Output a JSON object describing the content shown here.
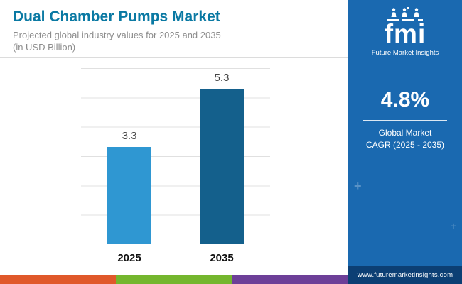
{
  "header": {
    "title": "Dual Chamber Pumps Market",
    "subtitle": "Projected global industry values for 2025 and 2035",
    "subtitle2": "(in USD Billion)"
  },
  "chart_data": {
    "type": "bar",
    "title": "Dual Chamber Pumps Market — Projected global industry values (USD Billion)",
    "categories": [
      "2025",
      "2035"
    ],
    "values": [
      3.3,
      5.3
    ],
    "xlabel": "",
    "ylabel": "USD Billion",
    "ylim": [
      0,
      6
    ],
    "gridlines": true,
    "legend": "none",
    "bar_colors": [
      "#2f97d2",
      "#14608c"
    ]
  },
  "sidebar": {
    "logo_text": "fmi",
    "logo_tagline": "Future Market Insights",
    "cagr_value": "4.8%",
    "cagr_line1": "Global Market",
    "cagr_line2": "CAGR (2025 - 2035)",
    "website": "www.futuremarketinsights.com"
  },
  "colors": {
    "title_text": "#0a79a3",
    "subtitle_text": "#8c8c8c",
    "sidebar_bg": "#1a69b0",
    "footer_bg": "#0c3f74",
    "gridline": "#e0e0e0",
    "strip": [
      "#e0582a",
      "#74b62e",
      "#6d3f98"
    ]
  }
}
